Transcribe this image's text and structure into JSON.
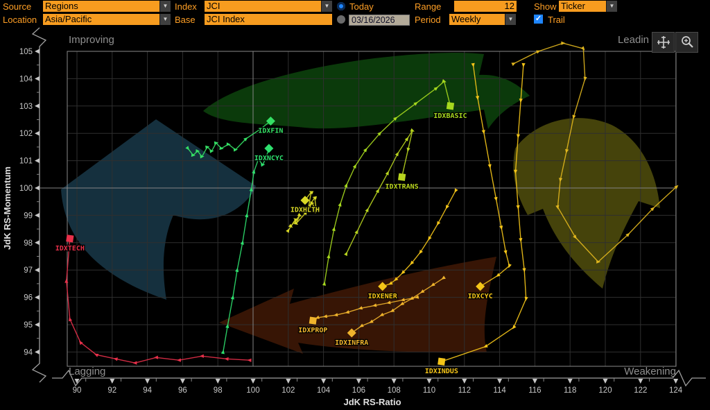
{
  "toolbar": {
    "source_label": "Source",
    "source_value": "Regions",
    "location_label": "Location",
    "location_value": "Asia/Pacific",
    "index_label": "Index",
    "index_value": "JCI",
    "base_label": "Base",
    "base_value": "JCI Index",
    "today_label": "Today",
    "date_value": "03/16/2026",
    "range_label": "Range",
    "range_value": "12",
    "period_label": "Period",
    "period_value": "Weekly",
    "show_label": "Show",
    "show_value": "Ticker",
    "trail_label": "Trail",
    "dropdown_arrow": "▼",
    "check_glyph": "✓",
    "accent_orange": "#f79c1f",
    "accent_blue": "#1f86ff"
  },
  "chart_buttons": [
    {
      "icon": "crosshair-move-icon"
    },
    {
      "icon": "zoom-in-icon"
    }
  ],
  "chart_data": {
    "type": "scatter",
    "subtype": "relative-rotation-graph",
    "xlabel": "JdK RS-Ratio",
    "ylabel": "JdK RS-Momentum",
    "xlim": [
      89.45,
      124.0
    ],
    "ylim": [
      93.48,
      105.0
    ],
    "x_ticks": [
      90,
      92,
      94,
      96,
      98,
      100,
      102,
      104,
      106,
      108,
      110,
      112,
      114,
      116,
      118,
      120,
      122,
      124
    ],
    "y_ticks": [
      94,
      95,
      96,
      97,
      98,
      99,
      100,
      101,
      102,
      103,
      104,
      105
    ],
    "center": [
      100,
      100
    ],
    "grid": true,
    "quadrants": {
      "top_left": "Improving",
      "top_right": "Leadin",
      "bottom_left": "Lagging",
      "bottom_right": "Weakening"
    },
    "background_arrows": [
      {
        "name": "improving-arrow",
        "direction": "up",
        "color": "#15303e"
      },
      {
        "name": "leading-arrow",
        "direction": "right",
        "color": "#0b3a0b"
      },
      {
        "name": "lagging-arrow",
        "direction": "left",
        "color": "#371505"
      },
      {
        "name": "weakening-arrow",
        "direction": "down",
        "color": "#45430b"
      }
    ],
    "series": [
      {
        "ticker": "IDXTECH",
        "color": "#e8304a",
        "marker": "square",
        "trail": [
          [
            99.8,
            93.7
          ],
          [
            98.5,
            93.75
          ],
          [
            97.1,
            93.85
          ],
          [
            95.8,
            93.7
          ],
          [
            94.5,
            93.8
          ],
          [
            93.3,
            93.6
          ],
          [
            92.2,
            93.75
          ],
          [
            91.1,
            93.9
          ],
          [
            90.2,
            94.35
          ],
          [
            89.6,
            95.2
          ],
          [
            89.4,
            96.6
          ],
          [
            89.6,
            98.15
          ]
        ]
      },
      {
        "ticker": "IDXFIN",
        "color": "#35e065",
        "marker": "diamond",
        "trail": [
          [
            96.3,
            101.45
          ],
          [
            96.6,
            101.2
          ],
          [
            96.85,
            101.35
          ],
          [
            97.1,
            101.15
          ],
          [
            97.4,
            101.5
          ],
          [
            97.65,
            101.35
          ],
          [
            97.9,
            101.65
          ],
          [
            98.2,
            101.45
          ],
          [
            98.6,
            101.6
          ],
          [
            99.0,
            101.4
          ],
          [
            99.6,
            101.8
          ],
          [
            100.4,
            102.15
          ],
          [
            101.0,
            102.45
          ]
        ]
      },
      {
        "ticker": "IDXNCYC",
        "color": "#2ee06e",
        "marker": "diamond",
        "trail": [
          [
            98.3,
            94.0
          ],
          [
            98.55,
            94.95
          ],
          [
            98.85,
            96.0
          ],
          [
            99.1,
            97.0
          ],
          [
            99.4,
            98.0
          ],
          [
            99.65,
            99.0
          ],
          [
            99.9,
            99.95
          ],
          [
            100.05,
            100.6
          ],
          [
            100.3,
            101.05
          ],
          [
            100.55,
            100.85
          ],
          [
            100.75,
            101.15
          ],
          [
            100.9,
            101.45
          ]
        ]
      },
      {
        "ticker": "IDXBASIC",
        "color": "#a6d81e",
        "marker": "square",
        "trail": [
          [
            104.05,
            96.5
          ],
          [
            104.3,
            97.5
          ],
          [
            104.6,
            98.5
          ],
          [
            104.95,
            99.4
          ],
          [
            105.3,
            100.1
          ],
          [
            105.8,
            100.8
          ],
          [
            106.4,
            101.4
          ],
          [
            107.2,
            102.0
          ],
          [
            108.1,
            102.55
          ],
          [
            109.25,
            103.1
          ],
          [
            110.4,
            103.65
          ],
          [
            110.85,
            103.9
          ],
          [
            111.2,
            103.0
          ]
        ]
      },
      {
        "ticker": "IDXTRANS",
        "color": "#b8d41f",
        "marker": "square",
        "trail": [
          [
            105.3,
            97.6
          ],
          [
            105.9,
            98.4
          ],
          [
            106.5,
            99.2
          ],
          [
            107.1,
            99.9
          ],
          [
            107.65,
            100.55
          ],
          [
            108.2,
            101.25
          ],
          [
            108.75,
            101.8
          ],
          [
            109.05,
            102.1
          ],
          [
            108.8,
            101.4
          ],
          [
            108.45,
            100.4
          ]
        ]
      },
      {
        "ticker": "IDXHLTH",
        "color": "#d9d926",
        "marker": "diamond",
        "trail": [
          [
            102.0,
            98.45
          ],
          [
            102.4,
            98.85
          ],
          [
            102.15,
            98.6
          ],
          [
            102.65,
            99.0
          ],
          [
            102.45,
            98.7
          ],
          [
            103.0,
            99.1
          ],
          [
            103.35,
            99.45
          ],
          [
            103.6,
            99.15
          ],
          [
            103.5,
            99.65
          ],
          [
            103.15,
            99.3
          ],
          [
            103.3,
            99.85
          ],
          [
            102.95,
            99.55
          ]
        ]
      },
      {
        "ticker": "IDXENER",
        "color": "#f5c518",
        "marker": "diamond",
        "trail": [
          [
            111.5,
            99.9
          ],
          [
            111.0,
            99.3
          ],
          [
            110.5,
            98.7
          ],
          [
            110.0,
            98.15
          ],
          [
            109.5,
            97.65
          ],
          [
            109.0,
            97.25
          ],
          [
            108.5,
            96.9
          ],
          [
            108.1,
            96.65
          ],
          [
            107.8,
            96.5
          ],
          [
            107.35,
            96.4
          ]
        ]
      },
      {
        "ticker": "IDXCYC",
        "color": "#f5c518",
        "marker": "diamond",
        "trail": [
          [
            112.5,
            104.5
          ],
          [
            112.75,
            103.3
          ],
          [
            113.1,
            102.05
          ],
          [
            113.45,
            100.8
          ],
          [
            113.8,
            99.6
          ],
          [
            114.1,
            98.55
          ],
          [
            114.35,
            97.65
          ],
          [
            114.55,
            97.15
          ],
          [
            113.9,
            96.8
          ],
          [
            112.9,
            96.4
          ]
        ]
      },
      {
        "ticker": "IDXPROP",
        "color": "#f0b42c",
        "marker": "square",
        "trail": [
          [
            109.3,
            96.0
          ],
          [
            108.5,
            95.9
          ],
          [
            107.7,
            95.8
          ],
          [
            106.9,
            95.7
          ],
          [
            106.1,
            95.6
          ],
          [
            105.35,
            95.45
          ],
          [
            104.7,
            95.35
          ],
          [
            104.1,
            95.3
          ],
          [
            103.65,
            95.25
          ],
          [
            103.4,
            95.15
          ]
        ]
      },
      {
        "ticker": "IDXINFRA",
        "color": "#f0b42c",
        "marker": "diamond",
        "trail": [
          [
            110.8,
            96.7
          ],
          [
            110.2,
            96.45
          ],
          [
            109.6,
            96.2
          ],
          [
            109.0,
            95.95
          ],
          [
            108.45,
            95.75
          ],
          [
            107.9,
            95.5
          ],
          [
            107.3,
            95.35
          ],
          [
            106.7,
            95.1
          ],
          [
            106.15,
            94.95
          ],
          [
            105.6,
            94.7
          ]
        ]
      },
      {
        "ticker": "IDXINDUS",
        "color": "#f5c518",
        "marker": "square",
        "trail": [
          [
            115.35,
            104.5
          ],
          [
            115.2,
            103.2
          ],
          [
            115.05,
            101.9
          ],
          [
            114.9,
            100.6
          ],
          [
            115.05,
            99.3
          ],
          [
            115.2,
            98.1
          ],
          [
            115.4,
            97.0
          ],
          [
            115.5,
            95.95
          ],
          [
            114.8,
            94.9
          ],
          [
            113.2,
            94.2
          ],
          [
            110.7,
            93.65
          ]
        ]
      },
      {
        "ticker": "",
        "color": "#e0b61e",
        "marker": "none",
        "trail": [
          [
            114.8,
            104.55
          ],
          [
            116.2,
            105.0
          ],
          [
            117.6,
            105.3
          ],
          [
            118.75,
            105.1
          ],
          [
            118.85,
            104.0
          ],
          [
            118.2,
            102.6
          ],
          [
            117.8,
            101.35
          ],
          [
            117.45,
            100.3
          ],
          [
            117.3,
            99.3
          ],
          [
            118.3,
            98.2
          ],
          [
            119.6,
            97.3
          ],
          [
            121.3,
            98.3
          ],
          [
            122.7,
            99.25
          ],
          [
            124.05,
            100.05
          ]
        ]
      }
    ]
  }
}
